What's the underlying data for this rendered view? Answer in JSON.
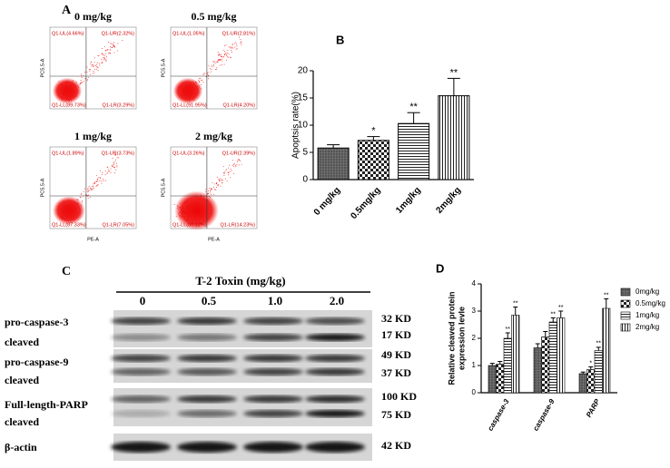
{
  "flow": {
    "panel_label": "A",
    "x_axis": "PE-A",
    "y_axis": "PC5.5-A",
    "plots": [
      {
        "title": "0 mg/kg",
        "quadrants": [
          "Q1-UL(4.66%)",
          "Q1-UR(2.32%)",
          "Q1-LL(89.73%)",
          "Q1-LR(3.29%)"
        ]
      },
      {
        "title": "0.5 mg/kg",
        "quadrants": [
          "Q1-UL(1.05%)",
          "Q1-UR(2.81%)",
          "Q1-LL(91.95%)",
          "Q1-LR(4.20%)"
        ]
      },
      {
        "title": "1 mg/kg",
        "quadrants": [
          "Q1-UL(1.89%)",
          "Q1-UR(3.73%)",
          "Q1-LL(87.33%)",
          "Q1-LR(7.05%)"
        ]
      },
      {
        "title": "2 mg/kg",
        "quadrants": [
          "Q1-UL(3.26%)",
          "Q1-UR(2.39%)",
          "Q1-LL(80.12%)",
          "Q1-LR(14.23%)"
        ]
      }
    ]
  },
  "blot": {
    "panel_label": "C",
    "title": "T-2 Toxin (mg/kg)",
    "lanes": [
      "0",
      "0.5",
      "1.0",
      "2.0"
    ],
    "rows": [
      {
        "labels": [
          "pro-caspase-3",
          "cleaved"
        ],
        "sizes": [
          "32 KD",
          "17 KD"
        ]
      },
      {
        "labels": [
          "pro-caspase-9",
          "cleaved"
        ],
        "sizes": [
          "49 KD",
          "37 KD"
        ]
      },
      {
        "labels": [
          "Full-length-PARP",
          "cleaved"
        ],
        "sizes": [
          "100 KD",
          "75 KD"
        ]
      },
      {
        "labels": [
          "β-actin"
        ],
        "sizes": [
          "42 KD"
        ]
      }
    ]
  },
  "chart_data": [
    {
      "type": "bar",
      "panel_label": "B",
      "y_label": "Apoptsis rate(%)",
      "categories": [
        "0 mg/kg",
        "0.5mg/kg",
        "1mg/kg",
        "2mg/kg"
      ],
      "values": [
        5.8,
        7.2,
        10.3,
        15.4
      ],
      "errors": [
        0.6,
        0.7,
        2.0,
        3.2
      ],
      "significance": [
        null,
        "*",
        "**",
        "**"
      ],
      "patterns": [
        "grid",
        "checker",
        "hlines",
        "vlines"
      ],
      "ylim": [
        0,
        20
      ],
      "yticks": [
        0,
        5,
        10,
        15,
        20
      ]
    },
    {
      "type": "grouped_bar",
      "panel_label": "D",
      "y_label": [
        "Relative cleaved protein",
        "expression levle"
      ],
      "categories": [
        "caspase-3",
        "caspase-9",
        "PARP"
      ],
      "series": [
        {
          "name": "0mg/kg",
          "pattern": "grid",
          "values": [
            1.0,
            1.65,
            0.7
          ],
          "errors": [
            0.08,
            0.15,
            0.06
          ],
          "significance": [
            null,
            null,
            null
          ]
        },
        {
          "name": "0.5mg/kg",
          "pattern": "checker",
          "values": [
            1.05,
            2.05,
            0.85
          ],
          "errors": [
            0.1,
            0.2,
            0.1
          ],
          "significance": [
            null,
            null,
            "*"
          ]
        },
        {
          "name": "1mg/kg",
          "pattern": "hlines",
          "values": [
            2.0,
            2.6,
            1.55
          ],
          "errors": [
            0.2,
            0.15,
            0.12
          ],
          "significance": [
            "**",
            "**",
            "**"
          ]
        },
        {
          "name": "2mg/kg",
          "pattern": "vlines",
          "values": [
            2.85,
            2.75,
            3.1
          ],
          "errors": [
            0.3,
            0.25,
            0.35
          ],
          "significance": [
            "**",
            "**",
            "**"
          ]
        }
      ],
      "ylim": [
        0,
        4
      ],
      "yticks": [
        0,
        1,
        2,
        3,
        4
      ]
    }
  ]
}
